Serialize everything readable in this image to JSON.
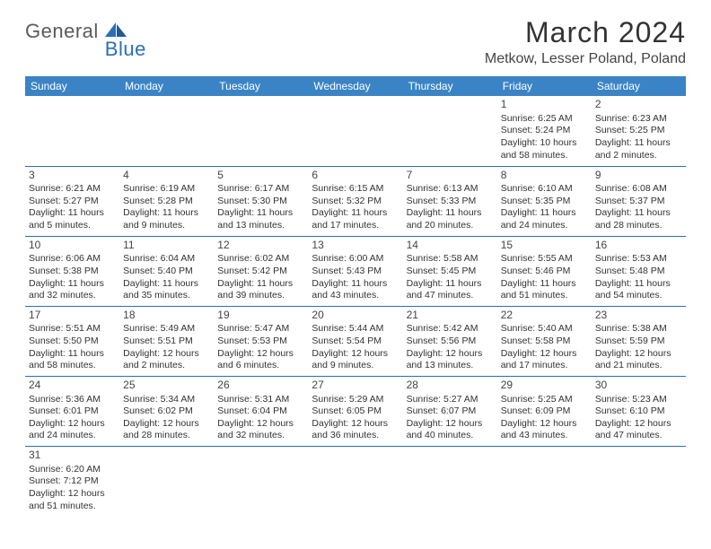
{
  "brand": {
    "part1": "General",
    "part2": "Blue"
  },
  "title": "March 2024",
  "location": "Metkow, Lesser Poland, Poland",
  "colors": {
    "header_bg": "#3a84c6",
    "border": "#2a6fb5",
    "brand_gray": "#5a5a5a",
    "brand_blue": "#2a6fb5"
  },
  "weekdays": [
    "Sunday",
    "Monday",
    "Tuesday",
    "Wednesday",
    "Thursday",
    "Friday",
    "Saturday"
  ],
  "weeks": [
    [
      null,
      null,
      null,
      null,
      null,
      {
        "d": "1",
        "sr": "Sunrise: 6:25 AM",
        "ss": "Sunset: 5:24 PM",
        "dl1": "Daylight: 10 hours",
        "dl2": "and 58 minutes."
      },
      {
        "d": "2",
        "sr": "Sunrise: 6:23 AM",
        "ss": "Sunset: 5:25 PM",
        "dl1": "Daylight: 11 hours",
        "dl2": "and 2 minutes."
      }
    ],
    [
      {
        "d": "3",
        "sr": "Sunrise: 6:21 AM",
        "ss": "Sunset: 5:27 PM",
        "dl1": "Daylight: 11 hours",
        "dl2": "and 5 minutes."
      },
      {
        "d": "4",
        "sr": "Sunrise: 6:19 AM",
        "ss": "Sunset: 5:28 PM",
        "dl1": "Daylight: 11 hours",
        "dl2": "and 9 minutes."
      },
      {
        "d": "5",
        "sr": "Sunrise: 6:17 AM",
        "ss": "Sunset: 5:30 PM",
        "dl1": "Daylight: 11 hours",
        "dl2": "and 13 minutes."
      },
      {
        "d": "6",
        "sr": "Sunrise: 6:15 AM",
        "ss": "Sunset: 5:32 PM",
        "dl1": "Daylight: 11 hours",
        "dl2": "and 17 minutes."
      },
      {
        "d": "7",
        "sr": "Sunrise: 6:13 AM",
        "ss": "Sunset: 5:33 PM",
        "dl1": "Daylight: 11 hours",
        "dl2": "and 20 minutes."
      },
      {
        "d": "8",
        "sr": "Sunrise: 6:10 AM",
        "ss": "Sunset: 5:35 PM",
        "dl1": "Daylight: 11 hours",
        "dl2": "and 24 minutes."
      },
      {
        "d": "9",
        "sr": "Sunrise: 6:08 AM",
        "ss": "Sunset: 5:37 PM",
        "dl1": "Daylight: 11 hours",
        "dl2": "and 28 minutes."
      }
    ],
    [
      {
        "d": "10",
        "sr": "Sunrise: 6:06 AM",
        "ss": "Sunset: 5:38 PM",
        "dl1": "Daylight: 11 hours",
        "dl2": "and 32 minutes."
      },
      {
        "d": "11",
        "sr": "Sunrise: 6:04 AM",
        "ss": "Sunset: 5:40 PM",
        "dl1": "Daylight: 11 hours",
        "dl2": "and 35 minutes."
      },
      {
        "d": "12",
        "sr": "Sunrise: 6:02 AM",
        "ss": "Sunset: 5:42 PM",
        "dl1": "Daylight: 11 hours",
        "dl2": "and 39 minutes."
      },
      {
        "d": "13",
        "sr": "Sunrise: 6:00 AM",
        "ss": "Sunset: 5:43 PM",
        "dl1": "Daylight: 11 hours",
        "dl2": "and 43 minutes."
      },
      {
        "d": "14",
        "sr": "Sunrise: 5:58 AM",
        "ss": "Sunset: 5:45 PM",
        "dl1": "Daylight: 11 hours",
        "dl2": "and 47 minutes."
      },
      {
        "d": "15",
        "sr": "Sunrise: 5:55 AM",
        "ss": "Sunset: 5:46 PM",
        "dl1": "Daylight: 11 hours",
        "dl2": "and 51 minutes."
      },
      {
        "d": "16",
        "sr": "Sunrise: 5:53 AM",
        "ss": "Sunset: 5:48 PM",
        "dl1": "Daylight: 11 hours",
        "dl2": "and 54 minutes."
      }
    ],
    [
      {
        "d": "17",
        "sr": "Sunrise: 5:51 AM",
        "ss": "Sunset: 5:50 PM",
        "dl1": "Daylight: 11 hours",
        "dl2": "and 58 minutes."
      },
      {
        "d": "18",
        "sr": "Sunrise: 5:49 AM",
        "ss": "Sunset: 5:51 PM",
        "dl1": "Daylight: 12 hours",
        "dl2": "and 2 minutes."
      },
      {
        "d": "19",
        "sr": "Sunrise: 5:47 AM",
        "ss": "Sunset: 5:53 PM",
        "dl1": "Daylight: 12 hours",
        "dl2": "and 6 minutes."
      },
      {
        "d": "20",
        "sr": "Sunrise: 5:44 AM",
        "ss": "Sunset: 5:54 PM",
        "dl1": "Daylight: 12 hours",
        "dl2": "and 9 minutes."
      },
      {
        "d": "21",
        "sr": "Sunrise: 5:42 AM",
        "ss": "Sunset: 5:56 PM",
        "dl1": "Daylight: 12 hours",
        "dl2": "and 13 minutes."
      },
      {
        "d": "22",
        "sr": "Sunrise: 5:40 AM",
        "ss": "Sunset: 5:58 PM",
        "dl1": "Daylight: 12 hours",
        "dl2": "and 17 minutes."
      },
      {
        "d": "23",
        "sr": "Sunrise: 5:38 AM",
        "ss": "Sunset: 5:59 PM",
        "dl1": "Daylight: 12 hours",
        "dl2": "and 21 minutes."
      }
    ],
    [
      {
        "d": "24",
        "sr": "Sunrise: 5:36 AM",
        "ss": "Sunset: 6:01 PM",
        "dl1": "Daylight: 12 hours",
        "dl2": "and 24 minutes."
      },
      {
        "d": "25",
        "sr": "Sunrise: 5:34 AM",
        "ss": "Sunset: 6:02 PM",
        "dl1": "Daylight: 12 hours",
        "dl2": "and 28 minutes."
      },
      {
        "d": "26",
        "sr": "Sunrise: 5:31 AM",
        "ss": "Sunset: 6:04 PM",
        "dl1": "Daylight: 12 hours",
        "dl2": "and 32 minutes."
      },
      {
        "d": "27",
        "sr": "Sunrise: 5:29 AM",
        "ss": "Sunset: 6:05 PM",
        "dl1": "Daylight: 12 hours",
        "dl2": "and 36 minutes."
      },
      {
        "d": "28",
        "sr": "Sunrise: 5:27 AM",
        "ss": "Sunset: 6:07 PM",
        "dl1": "Daylight: 12 hours",
        "dl2": "and 40 minutes."
      },
      {
        "d": "29",
        "sr": "Sunrise: 5:25 AM",
        "ss": "Sunset: 6:09 PM",
        "dl1": "Daylight: 12 hours",
        "dl2": "and 43 minutes."
      },
      {
        "d": "30",
        "sr": "Sunrise: 5:23 AM",
        "ss": "Sunset: 6:10 PM",
        "dl1": "Daylight: 12 hours",
        "dl2": "and 47 minutes."
      }
    ],
    [
      {
        "d": "31",
        "sr": "Sunrise: 6:20 AM",
        "ss": "Sunset: 7:12 PM",
        "dl1": "Daylight: 12 hours",
        "dl2": "and 51 minutes."
      },
      null,
      null,
      null,
      null,
      null,
      null
    ]
  ]
}
